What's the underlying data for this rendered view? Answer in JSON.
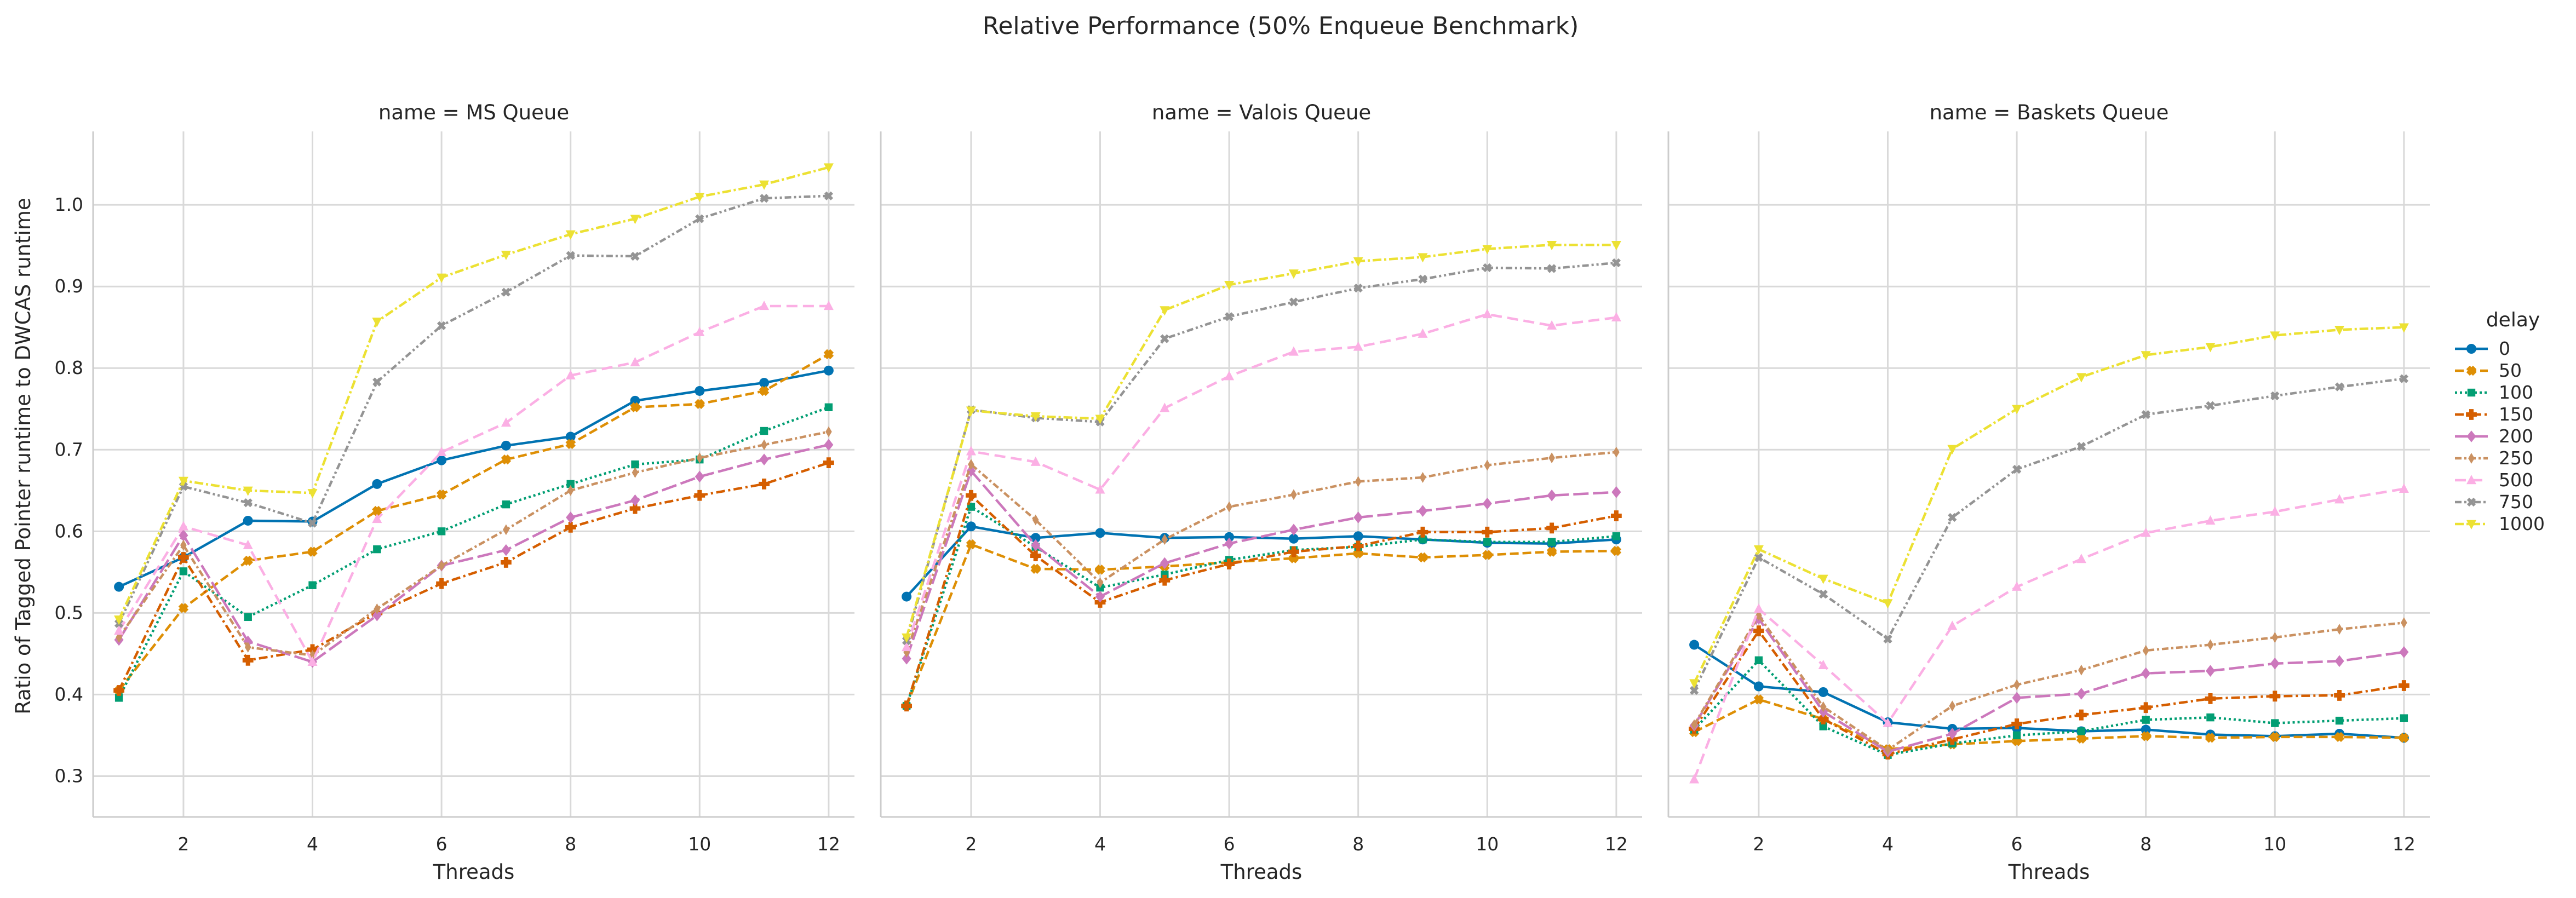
{
  "chart_data": {
    "type": "line",
    "title": "Relative Performance (50% Enqueue Benchmark)",
    "ylabel": "Ratio of Tagged Pointer runtime to DWCAS runtime",
    "xlabel": "Threads",
    "x": [
      1,
      2,
      3,
      4,
      5,
      6,
      7,
      8,
      9,
      10,
      11,
      12
    ],
    "xticks": [
      2,
      4,
      6,
      8,
      10,
      12
    ],
    "yticks": [
      0.3,
      0.4,
      0.5,
      0.6,
      0.7,
      0.8,
      0.9,
      1.0
    ],
    "ylim": [
      0.25,
      1.09
    ],
    "xlim": [
      0.6,
      12.4
    ],
    "grid": true,
    "legend": {
      "title": "delay",
      "placement": "right",
      "entries": [
        "0",
        "50",
        "100",
        "150",
        "200",
        "250",
        "500",
        "750",
        "1000"
      ]
    },
    "series_styles": [
      {
        "name": "0",
        "color": "#0173b2",
        "dash": "",
        "marker": "circle"
      },
      {
        "name": "50",
        "color": "#de8f05",
        "dash": "dashed",
        "marker": "x"
      },
      {
        "name": "100",
        "color": "#029e73",
        "dash": "dotted",
        "marker": "square"
      },
      {
        "name": "150",
        "color": "#d55e00",
        "dash": "dashdot",
        "marker": "plus"
      },
      {
        "name": "200",
        "color": "#cc78bc",
        "dash": "long",
        "marker": "diamond"
      },
      {
        "name": "250",
        "color": "#ca9161",
        "dash": "dashed2",
        "marker": "diamond-thin"
      },
      {
        "name": "500",
        "color": "#fbafe4",
        "dash": "dashed3",
        "marker": "triangle-up"
      },
      {
        "name": "750",
        "color": "#949494",
        "dash": "dashdot2",
        "marker": "x-thin"
      },
      {
        "name": "1000",
        "color": "#ece133",
        "dash": "dashdot3",
        "marker": "triangle-down"
      }
    ],
    "panels": [
      {
        "title": "name = MS Queue",
        "series": [
          {
            "name": "0",
            "values": [
              0.532,
              0.568,
              0.613,
              0.612,
              0.658,
              0.687,
              0.705,
              0.716,
              0.76,
              0.772,
              0.782,
              0.797
            ]
          },
          {
            "name": "50",
            "values": [
              0.405,
              0.506,
              0.564,
              0.575,
              0.625,
              0.645,
              0.688,
              0.707,
              0.752,
              0.756,
              0.772,
              0.817
            ]
          },
          {
            "name": "100",
            "values": [
              0.396,
              0.551,
              0.495,
              0.534,
              0.578,
              0.6,
              0.633,
              0.658,
              0.682,
              0.688,
              0.723,
              0.752
            ]
          },
          {
            "name": "150",
            "values": [
              0.405,
              0.568,
              0.442,
              0.455,
              0.5,
              0.536,
              0.562,
              0.605,
              0.628,
              0.644,
              0.658,
              0.684
            ]
          },
          {
            "name": "200",
            "values": [
              0.467,
              0.595,
              0.465,
              0.44,
              0.497,
              0.558,
              0.577,
              0.617,
              0.638,
              0.667,
              0.688,
              0.706
            ]
          },
          {
            "name": "250",
            "values": [
              0.47,
              0.583,
              0.458,
              0.448,
              0.505,
              0.558,
              0.602,
              0.65,
              0.672,
              0.69,
              0.706,
              0.722
            ]
          },
          {
            "name": "500",
            "values": [
              0.478,
              0.606,
              0.583,
              0.44,
              0.615,
              0.697,
              0.733,
              0.791,
              0.807,
              0.844,
              0.876,
              0.876
            ]
          },
          {
            "name": "750",
            "values": [
              0.487,
              0.655,
              0.635,
              0.61,
              0.783,
              0.852,
              0.893,
              0.938,
              0.937,
              0.983,
              1.008,
              1.011
            ]
          },
          {
            "name": "1000",
            "values": [
              0.492,
              0.662,
              0.65,
              0.647,
              0.857,
              0.911,
              0.939,
              0.964,
              0.983,
              1.01,
              1.025,
              1.046
            ]
          }
        ]
      },
      {
        "title": "name = Valois Queue",
        "series": [
          {
            "name": "0",
            "values": [
              0.52,
              0.606,
              0.592,
              0.598,
              0.592,
              0.593,
              0.591,
              0.594,
              0.59,
              0.586,
              0.585,
              0.59
            ]
          },
          {
            "name": "50",
            "values": [
              0.386,
              0.584,
              0.554,
              0.553,
              0.557,
              0.562,
              0.567,
              0.573,
              0.568,
              0.571,
              0.575,
              0.576
            ]
          },
          {
            "name": "100",
            "values": [
              0.386,
              0.63,
              0.581,
              0.531,
              0.547,
              0.565,
              0.577,
              0.581,
              0.59,
              0.587,
              0.587,
              0.594
            ]
          },
          {
            "name": "150",
            "values": [
              0.386,
              0.644,
              0.57,
              0.513,
              0.54,
              0.56,
              0.575,
              0.582,
              0.599,
              0.599,
              0.604,
              0.619
            ]
          },
          {
            "name": "200",
            "values": [
              0.444,
              0.674,
              0.583,
              0.52,
              0.561,
              0.585,
              0.602,
              0.617,
              0.625,
              0.634,
              0.644,
              0.648
            ]
          },
          {
            "name": "250",
            "values": [
              0.452,
              0.682,
              0.614,
              0.537,
              0.59,
              0.63,
              0.645,
              0.661,
              0.666,
              0.681,
              0.69,
              0.697
            ]
          },
          {
            "name": "500",
            "values": [
              0.458,
              0.698,
              0.685,
              0.651,
              0.751,
              0.79,
              0.82,
              0.826,
              0.842,
              0.866,
              0.852,
              0.862
            ]
          },
          {
            "name": "750",
            "values": [
              0.466,
              0.749,
              0.739,
              0.734,
              0.836,
              0.863,
              0.881,
              0.898,
              0.909,
              0.923,
              0.922,
              0.929
            ]
          },
          {
            "name": "1000",
            "values": [
              0.47,
              0.748,
              0.741,
              0.738,
              0.871,
              0.902,
              0.916,
              0.931,
              0.936,
              0.946,
              0.951,
              0.951
            ]
          }
        ]
      },
      {
        "title": "name = Baskets Queue",
        "series": [
          {
            "name": "0",
            "values": [
              0.461,
              0.41,
              0.403,
              0.366,
              0.358,
              0.359,
              0.355,
              0.357,
              0.351,
              0.349,
              0.352,
              0.347
            ]
          },
          {
            "name": "50",
            "values": [
              0.354,
              0.394,
              0.37,
              0.333,
              0.339,
              0.343,
              0.346,
              0.349,
              0.347,
              0.348,
              0.348,
              0.347
            ]
          },
          {
            "name": "100",
            "values": [
              0.357,
              0.442,
              0.361,
              0.326,
              0.34,
              0.35,
              0.355,
              0.369,
              0.372,
              0.365,
              0.368,
              0.371
            ]
          },
          {
            "name": "150",
            "values": [
              0.358,
              0.478,
              0.37,
              0.327,
              0.345,
              0.364,
              0.375,
              0.384,
              0.395,
              0.398,
              0.399,
              0.411
            ]
          },
          {
            "name": "200",
            "values": [
              0.362,
              0.493,
              0.379,
              0.33,
              0.352,
              0.396,
              0.401,
              0.426,
              0.429,
              0.438,
              0.441,
              0.452
            ]
          },
          {
            "name": "250",
            "values": [
              0.363,
              0.497,
              0.385,
              0.332,
              0.386,
              0.412,
              0.43,
              0.454,
              0.461,
              0.47,
              0.48,
              0.488
            ]
          },
          {
            "name": "500",
            "values": [
              0.296,
              0.505,
              0.436,
              0.365,
              0.484,
              0.532,
              0.566,
              0.598,
              0.613,
              0.624,
              0.639,
              0.652
            ]
          },
          {
            "name": "750",
            "values": [
              0.405,
              0.568,
              0.523,
              0.468,
              0.617,
              0.676,
              0.704,
              0.743,
              0.754,
              0.766,
              0.777,
              0.787
            ]
          },
          {
            "name": "1000",
            "values": [
              0.414,
              0.578,
              0.542,
              0.512,
              0.701,
              0.75,
              0.789,
              0.816,
              0.826,
              0.84,
              0.847,
              0.85
            ]
          }
        ]
      }
    ]
  }
}
